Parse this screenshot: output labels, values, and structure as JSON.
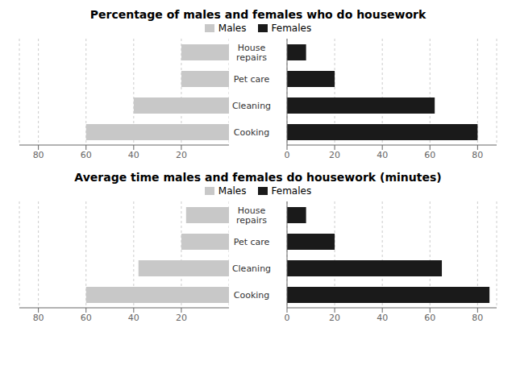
{
  "chart_data": [
    {
      "type": "bar",
      "orientation": "horizontal",
      "title": "Percentage of males and females who do housework",
      "categories": [
        "Cooking",
        "Cleaning",
        "Pet care",
        "House\nrepairs"
      ],
      "series": [
        {
          "name": "Males",
          "color": "#c8c8c8",
          "values": [
            60,
            40,
            20,
            20
          ]
        },
        {
          "name": "Females",
          "color": "#1a1a1a",
          "values": [
            80,
            62,
            20,
            8
          ]
        }
      ],
      "xlim": [
        0,
        88
      ],
      "xticks": [
        0,
        20,
        40,
        60,
        80
      ],
      "grid": true,
      "legend": "top"
    },
    {
      "type": "bar",
      "orientation": "horizontal",
      "title": "Average time males and females do housework (minutes)",
      "categories": [
        "Cooking",
        "Cleaning",
        "Pet care",
        "House\nrepairs"
      ],
      "series": [
        {
          "name": "Males",
          "color": "#c8c8c8",
          "values": [
            60,
            38,
            20,
            18
          ]
        },
        {
          "name": "Females",
          "color": "#1a1a1a",
          "values": [
            85,
            65,
            20,
            8
          ]
        }
      ],
      "xlim": [
        0,
        88
      ],
      "xticks": [
        0,
        20,
        40,
        60,
        80
      ],
      "grid": true,
      "legend": "top"
    }
  ]
}
